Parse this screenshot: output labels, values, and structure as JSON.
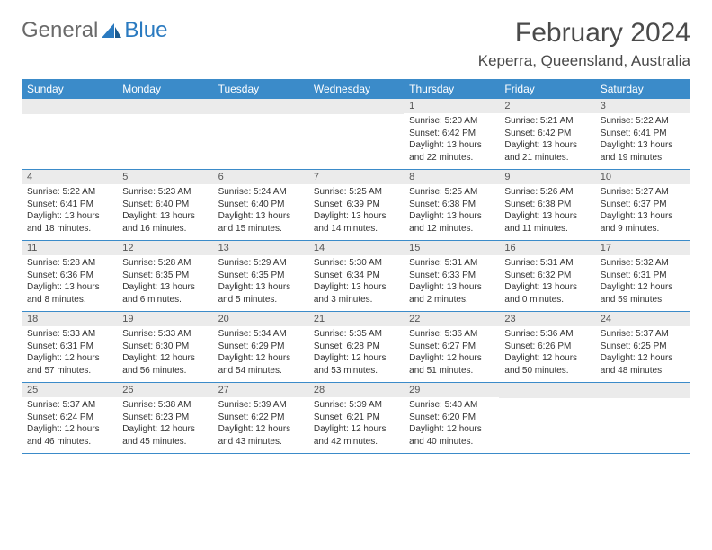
{
  "logo": {
    "gray": "General",
    "blue": "Blue"
  },
  "title": "February 2024",
  "location": "Keperra, Queensland, Australia",
  "header_bg": "#3b8bc9",
  "daynum_bg": "#ebebeb",
  "day_names": [
    "Sunday",
    "Monday",
    "Tuesday",
    "Wednesday",
    "Thursday",
    "Friday",
    "Saturday"
  ],
  "weeks": [
    [
      null,
      null,
      null,
      null,
      {
        "n": "1",
        "sr": "Sunrise: 5:20 AM",
        "ss": "Sunset: 6:42 PM",
        "d1": "Daylight: 13 hours",
        "d2": "and 22 minutes."
      },
      {
        "n": "2",
        "sr": "Sunrise: 5:21 AM",
        "ss": "Sunset: 6:42 PM",
        "d1": "Daylight: 13 hours",
        "d2": "and 21 minutes."
      },
      {
        "n": "3",
        "sr": "Sunrise: 5:22 AM",
        "ss": "Sunset: 6:41 PM",
        "d1": "Daylight: 13 hours",
        "d2": "and 19 minutes."
      }
    ],
    [
      {
        "n": "4",
        "sr": "Sunrise: 5:22 AM",
        "ss": "Sunset: 6:41 PM",
        "d1": "Daylight: 13 hours",
        "d2": "and 18 minutes."
      },
      {
        "n": "5",
        "sr": "Sunrise: 5:23 AM",
        "ss": "Sunset: 6:40 PM",
        "d1": "Daylight: 13 hours",
        "d2": "and 16 minutes."
      },
      {
        "n": "6",
        "sr": "Sunrise: 5:24 AM",
        "ss": "Sunset: 6:40 PM",
        "d1": "Daylight: 13 hours",
        "d2": "and 15 minutes."
      },
      {
        "n": "7",
        "sr": "Sunrise: 5:25 AM",
        "ss": "Sunset: 6:39 PM",
        "d1": "Daylight: 13 hours",
        "d2": "and 14 minutes."
      },
      {
        "n": "8",
        "sr": "Sunrise: 5:25 AM",
        "ss": "Sunset: 6:38 PM",
        "d1": "Daylight: 13 hours",
        "d2": "and 12 minutes."
      },
      {
        "n": "9",
        "sr": "Sunrise: 5:26 AM",
        "ss": "Sunset: 6:38 PM",
        "d1": "Daylight: 13 hours",
        "d2": "and 11 minutes."
      },
      {
        "n": "10",
        "sr": "Sunrise: 5:27 AM",
        "ss": "Sunset: 6:37 PM",
        "d1": "Daylight: 13 hours",
        "d2": "and 9 minutes."
      }
    ],
    [
      {
        "n": "11",
        "sr": "Sunrise: 5:28 AM",
        "ss": "Sunset: 6:36 PM",
        "d1": "Daylight: 13 hours",
        "d2": "and 8 minutes."
      },
      {
        "n": "12",
        "sr": "Sunrise: 5:28 AM",
        "ss": "Sunset: 6:35 PM",
        "d1": "Daylight: 13 hours",
        "d2": "and 6 minutes."
      },
      {
        "n": "13",
        "sr": "Sunrise: 5:29 AM",
        "ss": "Sunset: 6:35 PM",
        "d1": "Daylight: 13 hours",
        "d2": "and 5 minutes."
      },
      {
        "n": "14",
        "sr": "Sunrise: 5:30 AM",
        "ss": "Sunset: 6:34 PM",
        "d1": "Daylight: 13 hours",
        "d2": "and 3 minutes."
      },
      {
        "n": "15",
        "sr": "Sunrise: 5:31 AM",
        "ss": "Sunset: 6:33 PM",
        "d1": "Daylight: 13 hours",
        "d2": "and 2 minutes."
      },
      {
        "n": "16",
        "sr": "Sunrise: 5:31 AM",
        "ss": "Sunset: 6:32 PM",
        "d1": "Daylight: 13 hours",
        "d2": "and 0 minutes."
      },
      {
        "n": "17",
        "sr": "Sunrise: 5:32 AM",
        "ss": "Sunset: 6:31 PM",
        "d1": "Daylight: 12 hours",
        "d2": "and 59 minutes."
      }
    ],
    [
      {
        "n": "18",
        "sr": "Sunrise: 5:33 AM",
        "ss": "Sunset: 6:31 PM",
        "d1": "Daylight: 12 hours",
        "d2": "and 57 minutes."
      },
      {
        "n": "19",
        "sr": "Sunrise: 5:33 AM",
        "ss": "Sunset: 6:30 PM",
        "d1": "Daylight: 12 hours",
        "d2": "and 56 minutes."
      },
      {
        "n": "20",
        "sr": "Sunrise: 5:34 AM",
        "ss": "Sunset: 6:29 PM",
        "d1": "Daylight: 12 hours",
        "d2": "and 54 minutes."
      },
      {
        "n": "21",
        "sr": "Sunrise: 5:35 AM",
        "ss": "Sunset: 6:28 PM",
        "d1": "Daylight: 12 hours",
        "d2": "and 53 minutes."
      },
      {
        "n": "22",
        "sr": "Sunrise: 5:36 AM",
        "ss": "Sunset: 6:27 PM",
        "d1": "Daylight: 12 hours",
        "d2": "and 51 minutes."
      },
      {
        "n": "23",
        "sr": "Sunrise: 5:36 AM",
        "ss": "Sunset: 6:26 PM",
        "d1": "Daylight: 12 hours",
        "d2": "and 50 minutes."
      },
      {
        "n": "24",
        "sr": "Sunrise: 5:37 AM",
        "ss": "Sunset: 6:25 PM",
        "d1": "Daylight: 12 hours",
        "d2": "and 48 minutes."
      }
    ],
    [
      {
        "n": "25",
        "sr": "Sunrise: 5:37 AM",
        "ss": "Sunset: 6:24 PM",
        "d1": "Daylight: 12 hours",
        "d2": "and 46 minutes."
      },
      {
        "n": "26",
        "sr": "Sunrise: 5:38 AM",
        "ss": "Sunset: 6:23 PM",
        "d1": "Daylight: 12 hours",
        "d2": "and 45 minutes."
      },
      {
        "n": "27",
        "sr": "Sunrise: 5:39 AM",
        "ss": "Sunset: 6:22 PM",
        "d1": "Daylight: 12 hours",
        "d2": "and 43 minutes."
      },
      {
        "n": "28",
        "sr": "Sunrise: 5:39 AM",
        "ss": "Sunset: 6:21 PM",
        "d1": "Daylight: 12 hours",
        "d2": "and 42 minutes."
      },
      {
        "n": "29",
        "sr": "Sunrise: 5:40 AM",
        "ss": "Sunset: 6:20 PM",
        "d1": "Daylight: 12 hours",
        "d2": "and 40 minutes."
      },
      null,
      null
    ]
  ]
}
